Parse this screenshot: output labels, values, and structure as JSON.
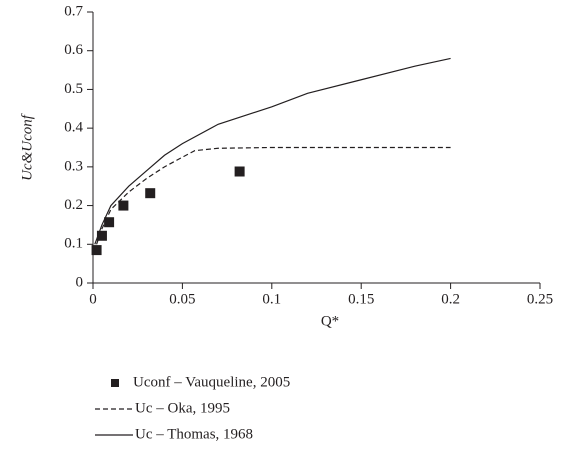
{
  "chart_data": {
    "type": "line",
    "xlabel": "Q*",
    "ylabel": "Uc&Uconf",
    "xlim": [
      0,
      0.25
    ],
    "xticks": [
      0,
      0.05,
      0.1,
      0.15,
      0.2,
      0.25
    ],
    "ylim": [
      0,
      0.7
    ],
    "yticks": [
      0,
      0.1,
      0.2,
      0.3,
      0.4,
      0.5,
      0.6,
      0.7
    ],
    "grid": false,
    "legend": "bottom",
    "series": [
      {
        "name": "Uconf – Vauqueline, 2005",
        "style": "square",
        "color": "#231f20",
        "x": [
          0.002,
          0.005,
          0.009,
          0.017,
          0.032,
          0.082
        ],
        "values": [
          0.085,
          0.122,
          0.157,
          0.2,
          0.232,
          0.288
        ]
      },
      {
        "name": "Uc – Oka, 1995",
        "style": "dashed",
        "color": "#231f20",
        "x": [
          0.002,
          0.005,
          0.01,
          0.02,
          0.03,
          0.04,
          0.05,
          0.057,
          0.07,
          0.1,
          0.15,
          0.2
        ],
        "values": [
          0.1,
          0.14,
          0.19,
          0.235,
          0.27,
          0.3,
          0.325,
          0.342,
          0.348,
          0.35,
          0.35,
          0.35
        ]
      },
      {
        "name": "Uc – Thomas, 1968",
        "style": "solid",
        "color": "#231f20",
        "x": [
          0.001,
          0.005,
          0.01,
          0.02,
          0.03,
          0.04,
          0.05,
          0.07,
          0.1,
          0.12,
          0.15,
          0.18,
          0.2
        ],
        "values": [
          0.1,
          0.15,
          0.2,
          0.25,
          0.29,
          0.33,
          0.36,
          0.41,
          0.455,
          0.49,
          0.525,
          0.56,
          0.58
        ]
      }
    ]
  }
}
